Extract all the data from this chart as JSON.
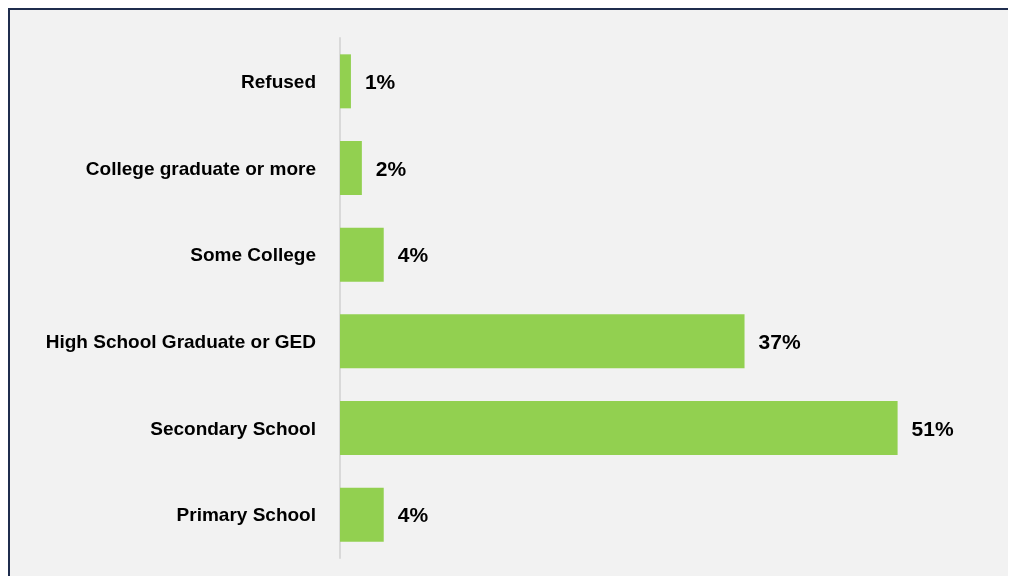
{
  "chart_data": {
    "type": "bar",
    "orientation": "horizontal",
    "categories": [
      "Refused",
      "College graduate or more",
      "Some College",
      "High School Graduate or GED",
      "Secondary School",
      "Primary School"
    ],
    "values": [
      1,
      2,
      4,
      37,
      51,
      4
    ],
    "value_labels": [
      "1%",
      "2%",
      "4%",
      "37%",
      "51%",
      "4%"
    ],
    "color": "#92d050"
  }
}
